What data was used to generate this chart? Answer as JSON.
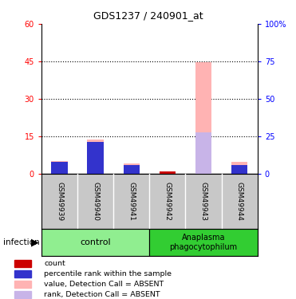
{
  "title": "GDS1237 / 240901_at",
  "samples": [
    "GSM49939",
    "GSM49940",
    "GSM49941",
    "GSM49942",
    "GSM49943",
    "GSM49944"
  ],
  "ylim_left": [
    0,
    60
  ],
  "ylim_right": [
    0,
    100
  ],
  "yticks_left": [
    0,
    15,
    30,
    45,
    60
  ],
  "yticks_right": [
    0,
    25,
    50,
    75,
    100
  ],
  "yticklabels_right": [
    "0",
    "25",
    "50",
    "75",
    "100%"
  ],
  "value_absent": [
    5.0,
    13.5,
    4.0,
    0.0,
    44.5,
    4.5
  ],
  "rank_absent": [
    4.5,
    12.5,
    3.5,
    0.0,
    16.5,
    3.5
  ],
  "count_val": [
    0.0,
    0.0,
    0.0,
    0.8,
    0.0,
    0.0
  ],
  "rank_present": [
    4.5,
    12.5,
    3.5,
    0.3,
    0.0,
    3.5
  ],
  "color_value_absent": "#ffb3b3",
  "color_rank_absent": "#c8b4e8",
  "color_count": "#cc0000",
  "color_rank_present": "#3333cc",
  "infection_label": "infection",
  "legend_items": [
    {
      "label": "count",
      "color": "#cc0000"
    },
    {
      "label": "percentile rank within the sample",
      "color": "#3333cc"
    },
    {
      "label": "value, Detection Call = ABSENT",
      "color": "#ffb3b3"
    },
    {
      "label": "rank, Detection Call = ABSENT",
      "color": "#c8b4e8"
    }
  ]
}
